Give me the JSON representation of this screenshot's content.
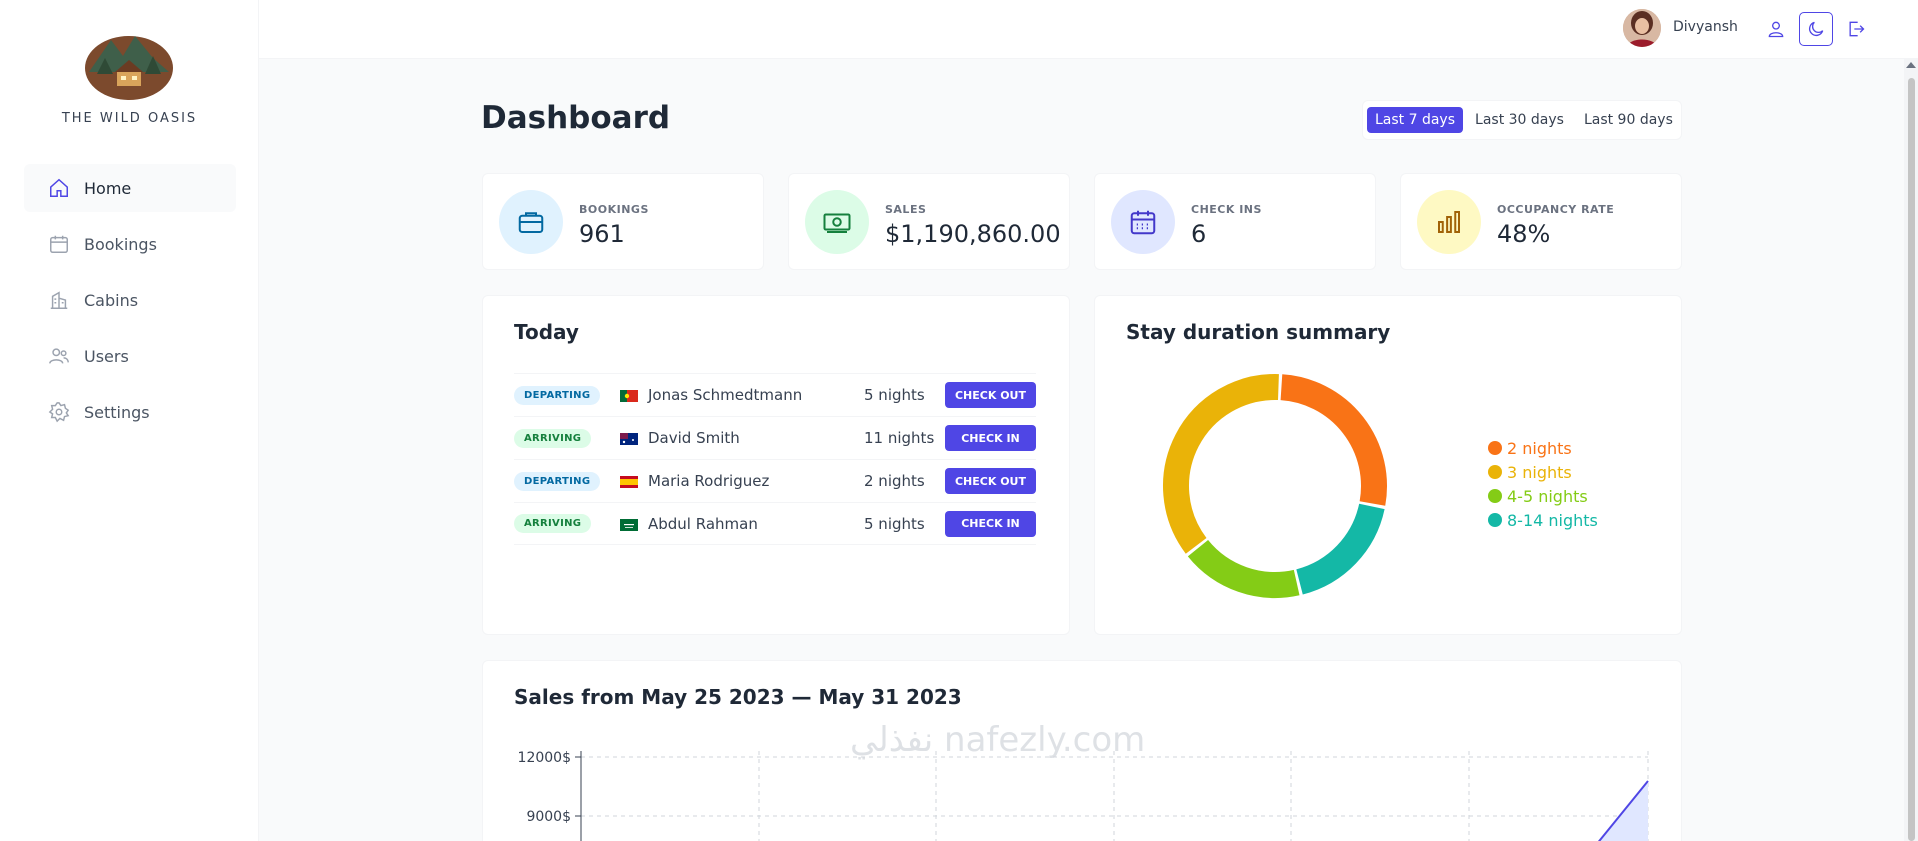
{
  "app": {
    "name": "THE WILD OASIS"
  },
  "sidebar": {
    "items": [
      {
        "label": "Home",
        "icon": "home-icon",
        "active": true
      },
      {
        "label": "Bookings",
        "icon": "calendar-icon",
        "active": false
      },
      {
        "label": "Cabins",
        "icon": "building-icon",
        "active": false
      },
      {
        "label": "Users",
        "icon": "users-icon",
        "active": false
      },
      {
        "label": "Settings",
        "icon": "gear-icon",
        "active": false
      }
    ]
  },
  "header": {
    "username": "Divyansh",
    "icons": [
      "user-icon",
      "moon-icon",
      "logout-icon"
    ]
  },
  "dashboard": {
    "title": "Dashboard",
    "filters": [
      {
        "label": "Last 7 days",
        "active": true
      },
      {
        "label": "Last 30 days",
        "active": false
      },
      {
        "label": "Last 90 days",
        "active": false
      }
    ]
  },
  "stats": [
    {
      "label": "BOOKINGS",
      "value": "961",
      "icon": "briefcase-icon",
      "bg": "#e0f2fe",
      "fg": "#0369a1"
    },
    {
      "label": "SALES",
      "value": "$1,190,860.00",
      "icon": "banknotes-icon",
      "bg": "#dcfce7",
      "fg": "#15803d"
    },
    {
      "label": "CHECK INS",
      "value": "6",
      "icon": "calendar-days-icon",
      "bg": "#e0e7ff",
      "fg": "#4338ca"
    },
    {
      "label": "OCCUPANCY RATE",
      "value": "48%",
      "icon": "chart-bar-icon",
      "bg": "#fef9c3",
      "fg": "#a16207"
    }
  ],
  "today": {
    "title": "Today",
    "rows": [
      {
        "status": "DEPARTING",
        "flag": "portugal",
        "guest": "Jonas Schmedtmann",
        "nights": "5 nights",
        "action": "CHECK OUT"
      },
      {
        "status": "ARRIVING",
        "flag": "australia",
        "guest": "David Smith",
        "nights": "11 nights",
        "action": "CHECK IN"
      },
      {
        "status": "DEPARTING",
        "flag": "spain",
        "guest": "Maria Rodriguez",
        "nights": "2 nights",
        "action": "CHECK OUT"
      },
      {
        "status": "ARRIVING",
        "flag": "saudi-arabia",
        "guest": "Abdul Rahman",
        "nights": "5 nights",
        "action": "CHECK IN"
      }
    ]
  },
  "duration": {
    "title": "Stay duration summary",
    "chart_data": {
      "type": "pie",
      "categories": [
        "2 nights",
        "3 nights",
        "4-5 nights",
        "8-14 nights"
      ],
      "values": [
        3,
        4,
        2,
        2
      ],
      "colors": [
        "#f97316",
        "#eab308",
        "#84cc16",
        "#14b8a6"
      ],
      "legend_position": "right"
    }
  },
  "sales": {
    "title": "Sales from May 25 2023 — May 31 2023",
    "chart_data": {
      "type": "area",
      "y_ticks": [
        "12000$",
        "9000$"
      ],
      "ylim": [
        0,
        12000
      ],
      "grid": true,
      "series_color": "#4f46e5"
    }
  },
  "watermark": "نفذلي nafezly.com"
}
